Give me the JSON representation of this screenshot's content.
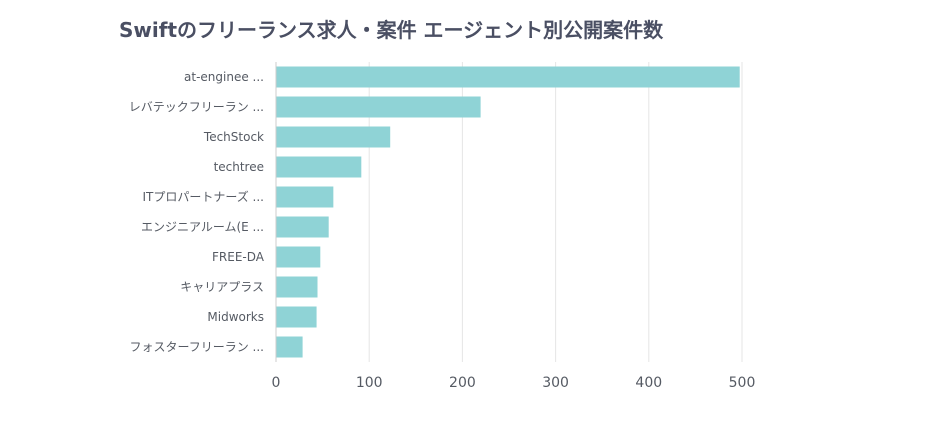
{
  "chart_data": {
    "type": "bar",
    "orientation": "horizontal",
    "title": "Swiftのフリーランス求人・案件 エージェント別公開案件数",
    "categories": [
      "at-enginee ...",
      "レバテックフリーラン ...",
      "TechStock",
      "techtree",
      "ITプロパートナーズ ...",
      "エンジニアルーム(E ...",
      "FREE-DA",
      "キャリアプラス",
      "Midworks",
      "フォスターフリーラン ..."
    ],
    "values": [
      497,
      219,
      122,
      91,
      61,
      56,
      47,
      44,
      43,
      28
    ],
    "xticks": [
      0,
      100,
      200,
      300,
      400,
      500
    ],
    "xlim": [
      0,
      500
    ],
    "xlabel": "",
    "ylabel": "",
    "grid": true,
    "legend": "none",
    "bar_color": "#8fd3d6",
    "grid_color": "#e5e5e5",
    "axis_color": "#cccccc"
  }
}
